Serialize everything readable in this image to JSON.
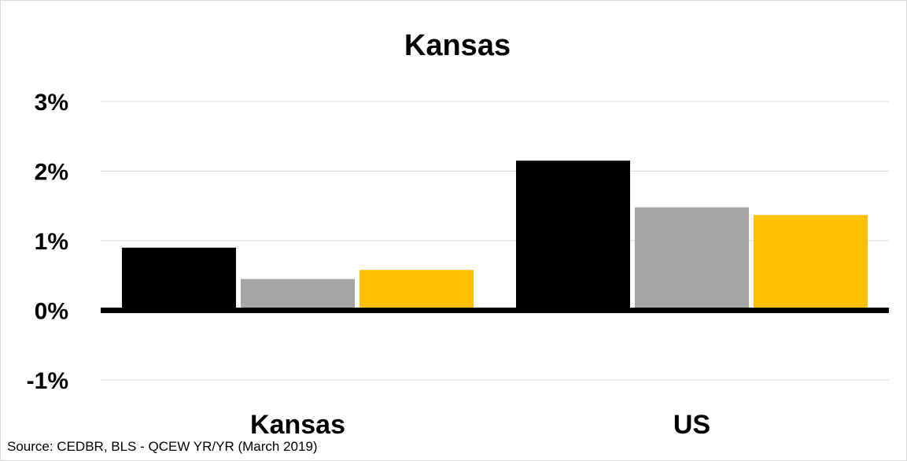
{
  "chart_data": {
    "type": "bar",
    "title": "Kansas",
    "categories": [
      "Kansas",
      "US"
    ],
    "series": [
      {
        "color": "#000000",
        "values": [
          0.9,
          2.15
        ]
      },
      {
        "color": "#a6a6a6",
        "values": [
          0.45,
          1.48
        ]
      },
      {
        "color": "#ffc000",
        "values": [
          0.58,
          1.37
        ]
      }
    ],
    "ylim": [
      -1,
      3
    ],
    "yticks": [
      {
        "value": 3,
        "label": "3%"
      },
      {
        "value": 2,
        "label": "2%"
      },
      {
        "value": 1,
        "label": "1%"
      },
      {
        "value": 0,
        "label": "0%"
      },
      {
        "value": -1,
        "label": "-1%"
      }
    ],
    "xlabel": "",
    "ylabel": "",
    "grid": true,
    "legend": "none"
  },
  "source": "Source: CEDBR, BLS - QCEW YR/YR (March 2019)"
}
